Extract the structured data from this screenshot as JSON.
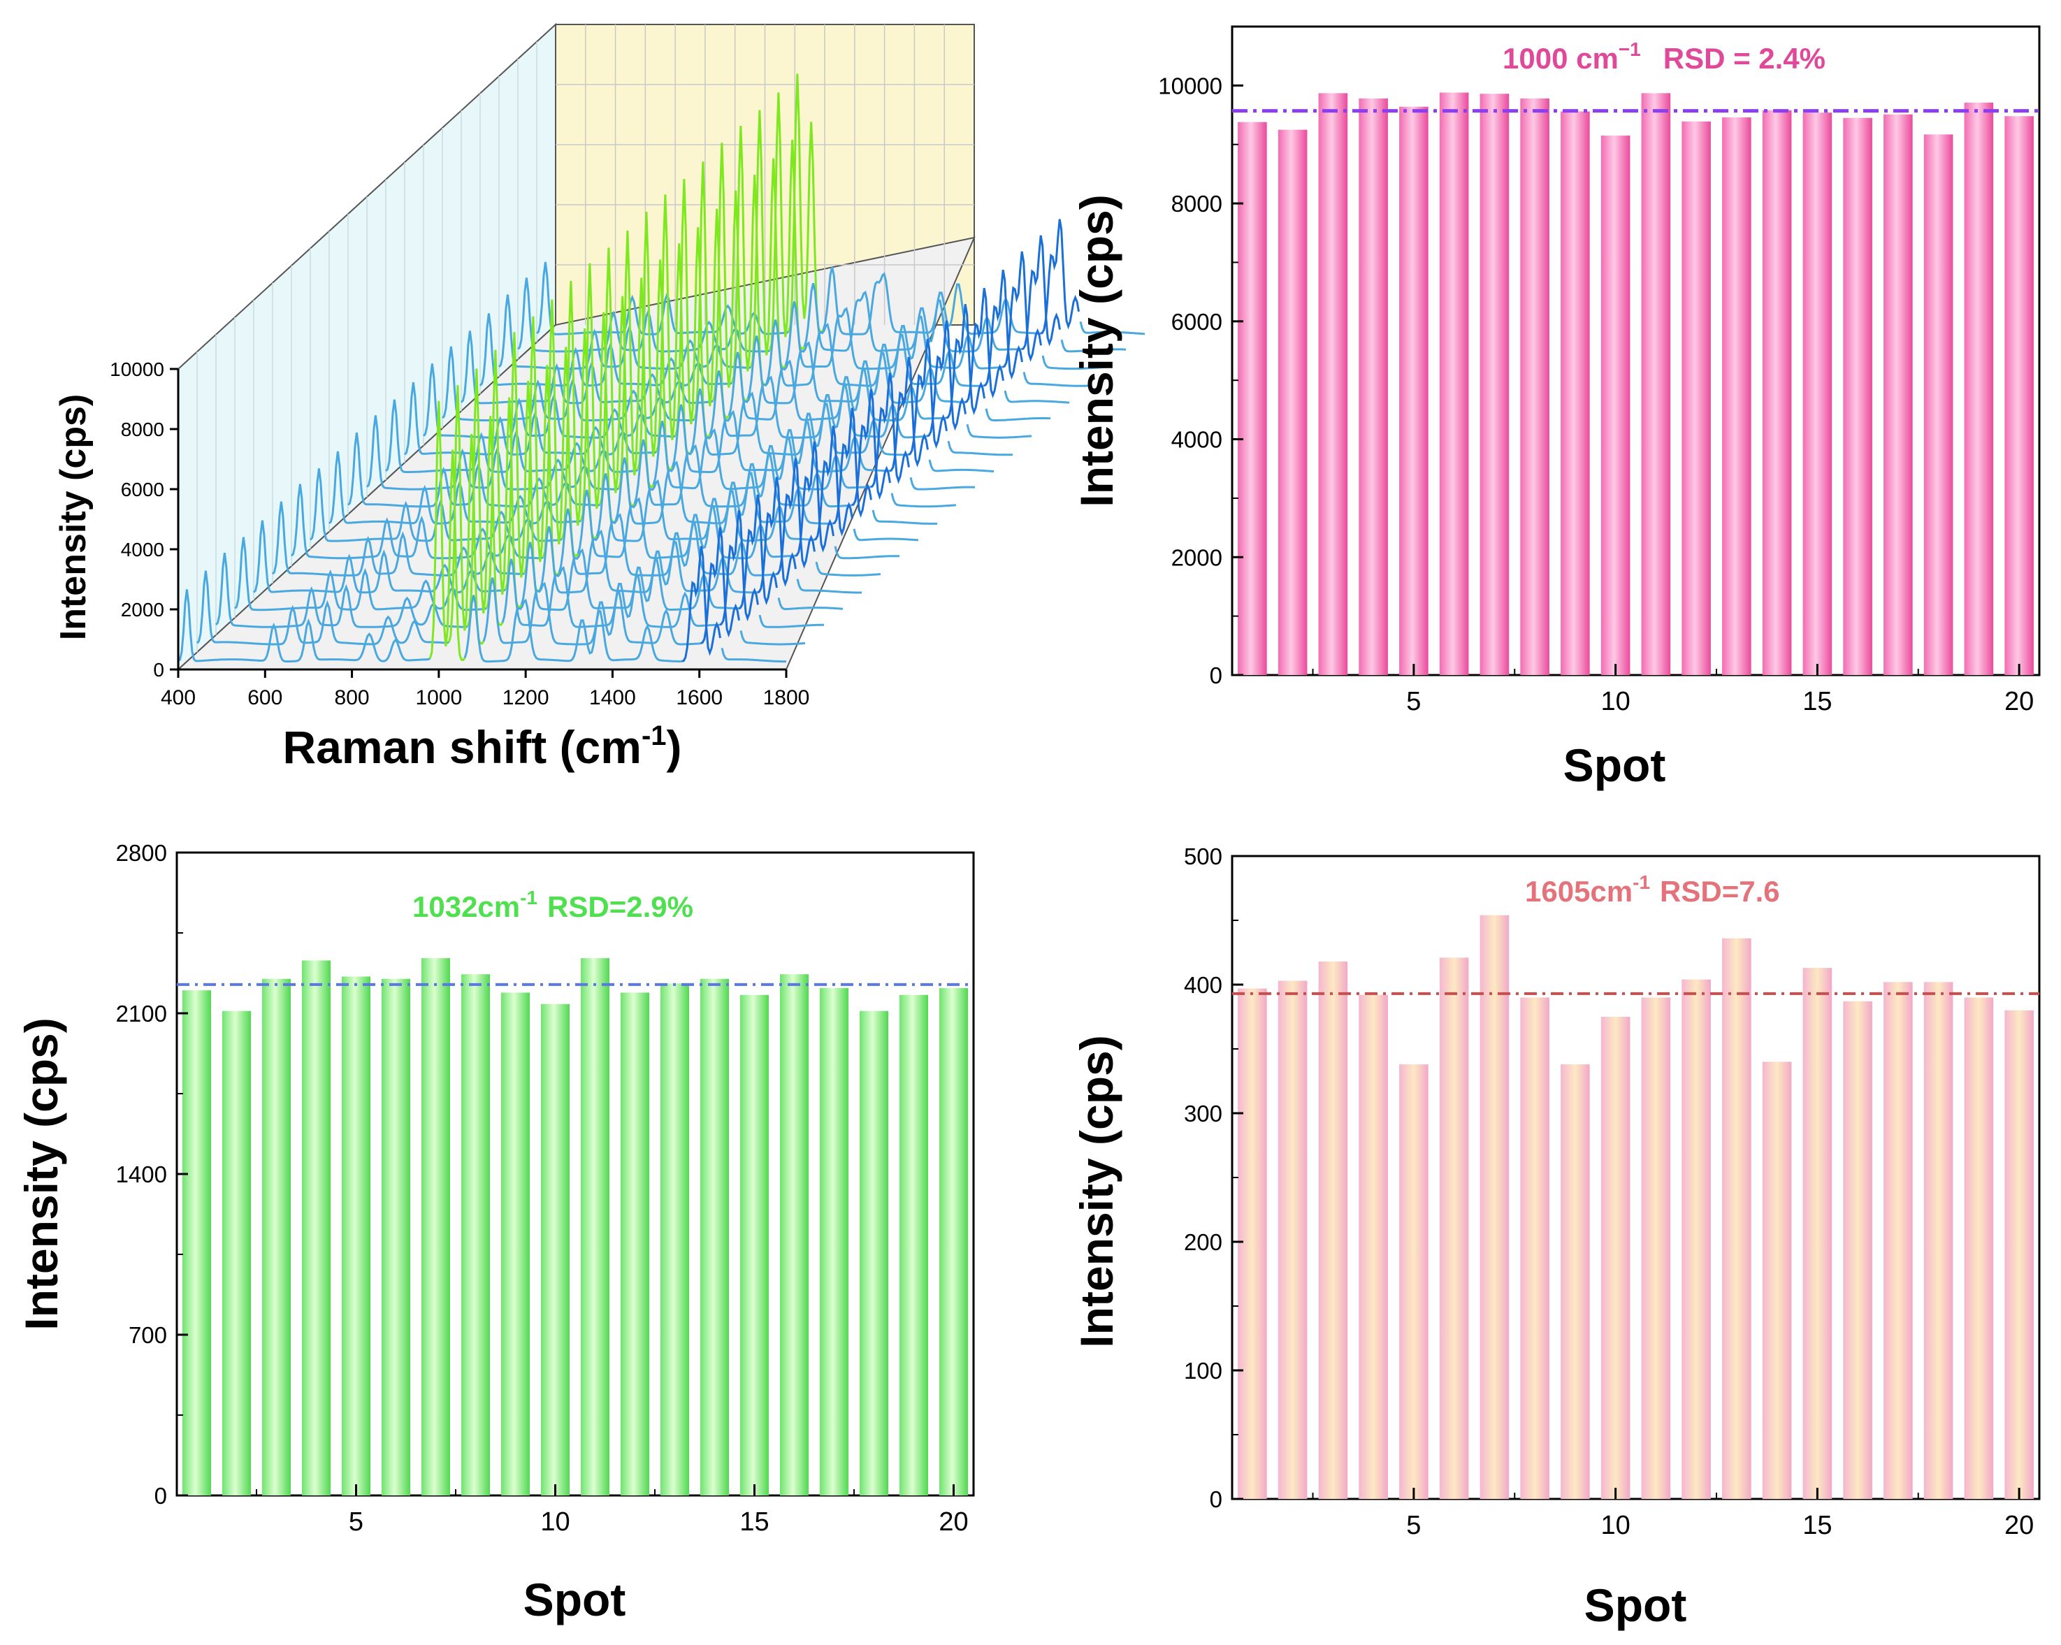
{
  "chart_data": [
    {
      "type": "line",
      "subtype": "waterfall-3d",
      "xlabel": "Raman shift (cm",
      "xlabel_sup": "-1",
      "xlabel_close": ")",
      "ylabel": "Intensity (cps)",
      "xlim": [
        400,
        1800
      ],
      "ylim": [
        0,
        10000
      ],
      "x_ticks": [
        "400",
        "600",
        "800",
        "1000",
        "1200",
        "1400",
        "1600",
        "1800"
      ],
      "y_ticks": [
        "0",
        "2000",
        "4000",
        "6000",
        "8000",
        "10000"
      ],
      "n_spectra": 20,
      "peaks_cm": [
        1000,
        1032,
        1605
      ],
      "colors": {
        "spectrum": "#4aa8e0",
        "peak_1000": "#7ee81f",
        "peak_1605": "#1b6fd8",
        "back_wall": "#fbf6cf",
        "side_wall": "#e6f7f9",
        "floor": "#f2f2f2"
      }
    },
    {
      "type": "bar",
      "annotation": "1000 cm",
      "annotation_sup": "−1",
      "annotation_rsd": "RSD = 2.4%",
      "annotation_color": "#e0489a",
      "xlabel": "Spot",
      "ylabel": "Intensity (cps)",
      "xlim": [
        0.5,
        20.5
      ],
      "ylim": [
        0,
        11000
      ],
      "x_ticks": [
        "5",
        "10",
        "15",
        "20"
      ],
      "y_ticks": [
        "0",
        "2000",
        "4000",
        "6000",
        "8000",
        "10000"
      ],
      "categories": [
        1,
        2,
        3,
        4,
        5,
        6,
        7,
        8,
        9,
        10,
        11,
        12,
        13,
        14,
        15,
        16,
        17,
        18,
        19,
        20
      ],
      "values": [
        9380,
        9250,
        9870,
        9780,
        9640,
        9880,
        9860,
        9780,
        9560,
        9150,
        9870,
        9390,
        9460,
        9580,
        9540,
        9450,
        9510,
        9170,
        9710,
        9480
      ],
      "mean_line": 9570,
      "colors": {
        "bar_light": "#ffc2e2",
        "bar_dark": "#ec4d9f",
        "mean_line": "#8a3ef0"
      }
    },
    {
      "type": "bar",
      "annotation": "1032cm",
      "annotation_sup": "-1",
      "annotation_rsd": "RSD=2.9%",
      "annotation_color": "#4ee04e",
      "xlabel": "Spot",
      "ylabel": "Intensity (cps)",
      "xlim": [
        0.5,
        20.5
      ],
      "ylim": [
        0,
        2800
      ],
      "x_ticks": [
        "5",
        "10",
        "15",
        "20"
      ],
      "y_ticks": [
        "0",
        "700",
        "1400",
        "2100",
        "2800"
      ],
      "categories": [
        1,
        2,
        3,
        4,
        5,
        6,
        7,
        8,
        9,
        10,
        11,
        12,
        13,
        14,
        15,
        16,
        17,
        18,
        19,
        20
      ],
      "values": [
        2200,
        2110,
        2250,
        2330,
        2260,
        2250,
        2340,
        2270,
        2190,
        2140,
        2340,
        2190,
        2230,
        2250,
        2180,
        2270,
        2210,
        2110,
        2180,
        2210
      ],
      "mean_line": 2225,
      "colors": {
        "bar_light": "#d6ffc9",
        "bar_dark": "#55de55",
        "mean_line": "#5a78e6"
      }
    },
    {
      "type": "bar",
      "annotation": "1605cm",
      "annotation_sup": "-1",
      "annotation_rsd": "RSD=7.6",
      "annotation_color": "#e4727a",
      "xlabel": "Spot",
      "ylabel": "Intensity (cps)",
      "xlim": [
        0.5,
        20.5
      ],
      "ylim": [
        0,
        500
      ],
      "x_ticks": [
        "5",
        "10",
        "15",
        "20"
      ],
      "y_ticks": [
        "0",
        "100",
        "200",
        "300",
        "400",
        "500"
      ],
      "categories": [
        1,
        2,
        3,
        4,
        5,
        6,
        7,
        8,
        9,
        10,
        11,
        12,
        13,
        14,
        15,
        16,
        17,
        18,
        19,
        20
      ],
      "values": [
        397,
        403,
        418,
        392,
        338,
        421,
        454,
        390,
        338,
        375,
        390,
        404,
        436,
        340,
        413,
        387,
        402,
        402,
        390,
        380
      ],
      "mean_line": 393,
      "colors": {
        "bar_light": "#fbe5c0",
        "bar_dark": "#f2a6c6",
        "mean_line": "#c45050"
      }
    }
  ]
}
